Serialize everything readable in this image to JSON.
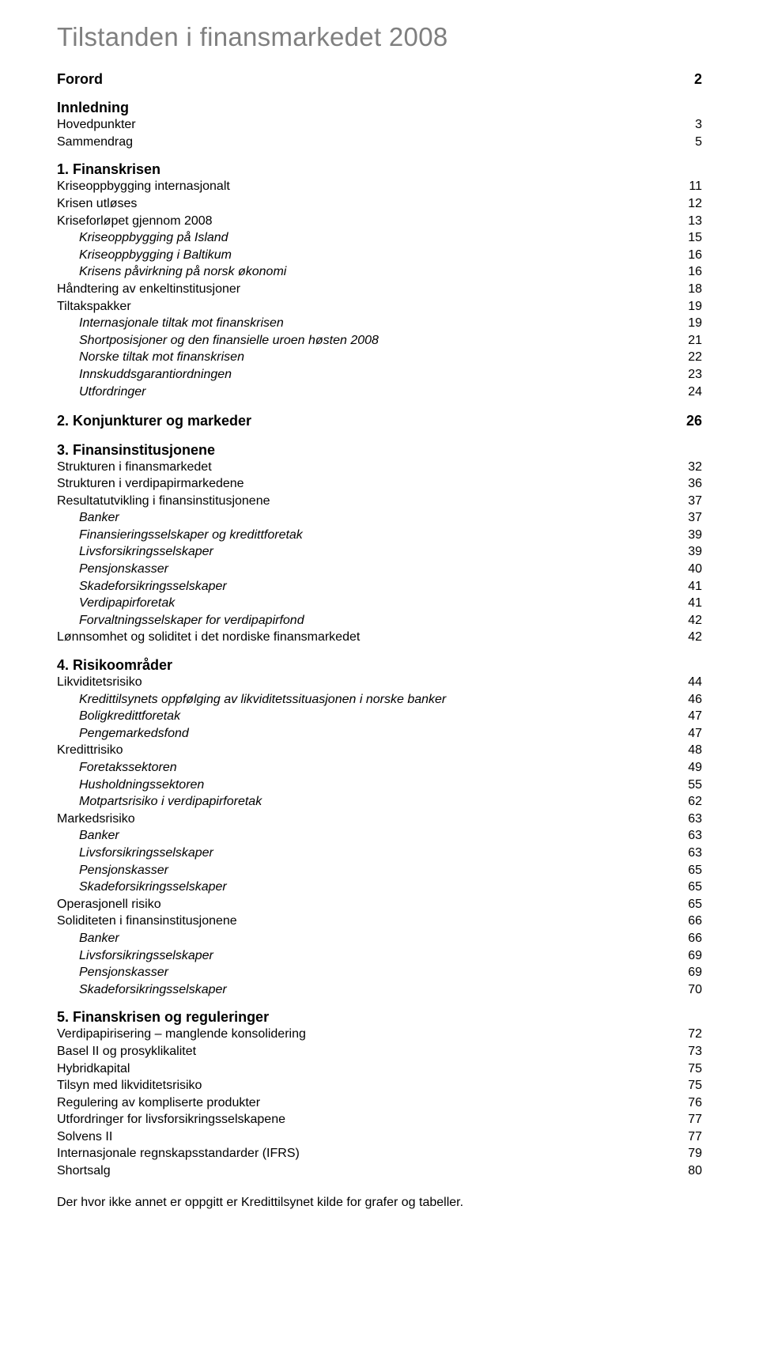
{
  "page": {
    "title": "Tilstanden i finansmarkedet 2008",
    "footer": "Der hvor ikke annet er oppgitt er Kredittilsynet kilde for grafer og tabeller."
  },
  "toc": {
    "forord": {
      "label": "Forord",
      "page": "2"
    },
    "innledning": {
      "label": "Innledning",
      "hovedpunkter": {
        "label": "Hovedpunkter",
        "page": "3"
      },
      "sammendrag": {
        "label": "Sammendrag",
        "page": "5"
      }
    },
    "s1": {
      "heading": "1. Finanskrisen",
      "items": [
        {
          "label": "Kriseoppbygging internasjonalt",
          "page": "11",
          "indent": false,
          "italic": false
        },
        {
          "label": "Krisen utløses",
          "page": "12",
          "indent": false,
          "italic": false
        },
        {
          "label": "Kriseforløpet gjennom 2008",
          "page": "13",
          "indent": false,
          "italic": false
        },
        {
          "label": "Kriseoppbygging på Island",
          "page": "15",
          "indent": true,
          "italic": true
        },
        {
          "label": "Kriseoppbygging i Baltikum",
          "page": "16",
          "indent": true,
          "italic": true
        },
        {
          "label": "Krisens påvirkning på norsk økonomi",
          "page": "16",
          "indent": true,
          "italic": true
        },
        {
          "label": "Håndtering av enkeltinstitusjoner",
          "page": "18",
          "indent": false,
          "italic": false
        },
        {
          "label": "Tiltakspakker",
          "page": "19",
          "indent": false,
          "italic": false
        },
        {
          "label": "Internasjonale tiltak mot finanskrisen",
          "page": "19",
          "indent": true,
          "italic": true
        },
        {
          "label": "Shortposisjoner og den finansielle uroen høsten 2008",
          "page": "21",
          "indent": true,
          "italic": true
        },
        {
          "label": "Norske tiltak mot finanskrisen",
          "page": "22",
          "indent": true,
          "italic": true
        },
        {
          "label": "Innskuddsgarantiordningen",
          "page": "23",
          "indent": true,
          "italic": true
        },
        {
          "label": "Utfordringer",
          "page": "24",
          "indent": true,
          "italic": true
        }
      ]
    },
    "s2": {
      "heading": "2. Konjunkturer og markeder",
      "page": "26"
    },
    "s3": {
      "heading": "3. Finansinstitusjonene",
      "items": [
        {
          "label": "Strukturen i finansmarkedet",
          "page": "32",
          "indent": false,
          "italic": false
        },
        {
          "label": "Strukturen i verdipapirmarkedene",
          "page": "36",
          "indent": false,
          "italic": false
        },
        {
          "label": "Resultatutvikling i finansinstitusjonene",
          "page": "37",
          "indent": false,
          "italic": false
        },
        {
          "label": "Banker",
          "page": "37",
          "indent": true,
          "italic": true
        },
        {
          "label": "Finansieringsselskaper og kredittforetak",
          "page": "39",
          "indent": true,
          "italic": true
        },
        {
          "label": "Livsforsikringsselskaper",
          "page": "39",
          "indent": true,
          "italic": true
        },
        {
          "label": "Pensjonskasser",
          "page": "40",
          "indent": true,
          "italic": true
        },
        {
          "label": "Skadeforsikringsselskaper",
          "page": "41",
          "indent": true,
          "italic": true
        },
        {
          "label": "Verdipapirforetak",
          "page": "41",
          "indent": true,
          "italic": true
        },
        {
          "label": "Forvaltningsselskaper for verdipapirfond",
          "page": "42",
          "indent": true,
          "italic": true
        },
        {
          "label": "Lønnsomhet og soliditet i det nordiske finansmarkedet",
          "page": "42",
          "indent": false,
          "italic": false
        }
      ]
    },
    "s4": {
      "heading": "4. Risikoområder",
      "items": [
        {
          "label": "Likviditetsrisiko",
          "page": "44",
          "indent": false,
          "italic": false
        },
        {
          "label": "Kredittilsynets oppfølging av likviditetssituasjonen i norske banker",
          "page": "46",
          "indent": true,
          "italic": true
        },
        {
          "label": "Boligkredittforetak",
          "page": "47",
          "indent": true,
          "italic": true
        },
        {
          "label": "Pengemarkedsfond",
          "page": "47",
          "indent": true,
          "italic": true
        },
        {
          "label": "Kredittrisiko",
          "page": "48",
          "indent": false,
          "italic": false
        },
        {
          "label": "Foretakssektoren",
          "page": "49",
          "indent": true,
          "italic": true
        },
        {
          "label": "Husholdningssektoren",
          "page": "55",
          "indent": true,
          "italic": true
        },
        {
          "label": "Motpartsrisiko i verdipapirforetak",
          "page": "62",
          "indent": true,
          "italic": true
        },
        {
          "label": "Markedsrisiko",
          "page": "63",
          "indent": false,
          "italic": false
        },
        {
          "label": "Banker",
          "page": "63",
          "indent": true,
          "italic": true
        },
        {
          "label": "Livsforsikringsselskaper",
          "page": "63",
          "indent": true,
          "italic": true
        },
        {
          "label": "Pensjonskasser",
          "page": "65",
          "indent": true,
          "italic": true
        },
        {
          "label": "Skadeforsikringsselskaper",
          "page": "65",
          "indent": true,
          "italic": true
        },
        {
          "label": "Operasjonell risiko",
          "page": "65",
          "indent": false,
          "italic": false
        },
        {
          "label": "Soliditeten i finansinstitusjonene",
          "page": "66",
          "indent": false,
          "italic": false
        },
        {
          "label": "Banker",
          "page": "66",
          "indent": true,
          "italic": true
        },
        {
          "label": "Livsforsikringsselskaper",
          "page": "69",
          "indent": true,
          "italic": true
        },
        {
          "label": "Pensjonskasser",
          "page": "69",
          "indent": true,
          "italic": true
        },
        {
          "label": "Skadeforsikringsselskaper",
          "page": "70",
          "indent": true,
          "italic": true
        }
      ]
    },
    "s5": {
      "heading": "5. Finanskrisen og reguleringer",
      "items": [
        {
          "label": "Verdipapirisering – manglende konsolidering",
          "page": "72",
          "indent": false,
          "italic": false
        },
        {
          "label": "Basel II og prosyklikalitet",
          "page": "73",
          "indent": false,
          "italic": false
        },
        {
          "label": "Hybridkapital",
          "page": "75",
          "indent": false,
          "italic": false
        },
        {
          "label": "Tilsyn med likviditetsrisiko",
          "page": "75",
          "indent": false,
          "italic": false
        },
        {
          "label": "Regulering av kompliserte produkter",
          "page": "76",
          "indent": false,
          "italic": false
        },
        {
          "label": "Utfordringer for livsforsikringsselskapene",
          "page": "77",
          "indent": false,
          "italic": false
        },
        {
          "label": "Solvens II",
          "page": "77",
          "indent": false,
          "italic": false
        },
        {
          "label": "Internasjonale regnskapsstandarder (IFRS)",
          "page": "79",
          "indent": false,
          "italic": false
        },
        {
          "label": "Shortsalg",
          "page": "80",
          "indent": false,
          "italic": false
        }
      ]
    }
  }
}
